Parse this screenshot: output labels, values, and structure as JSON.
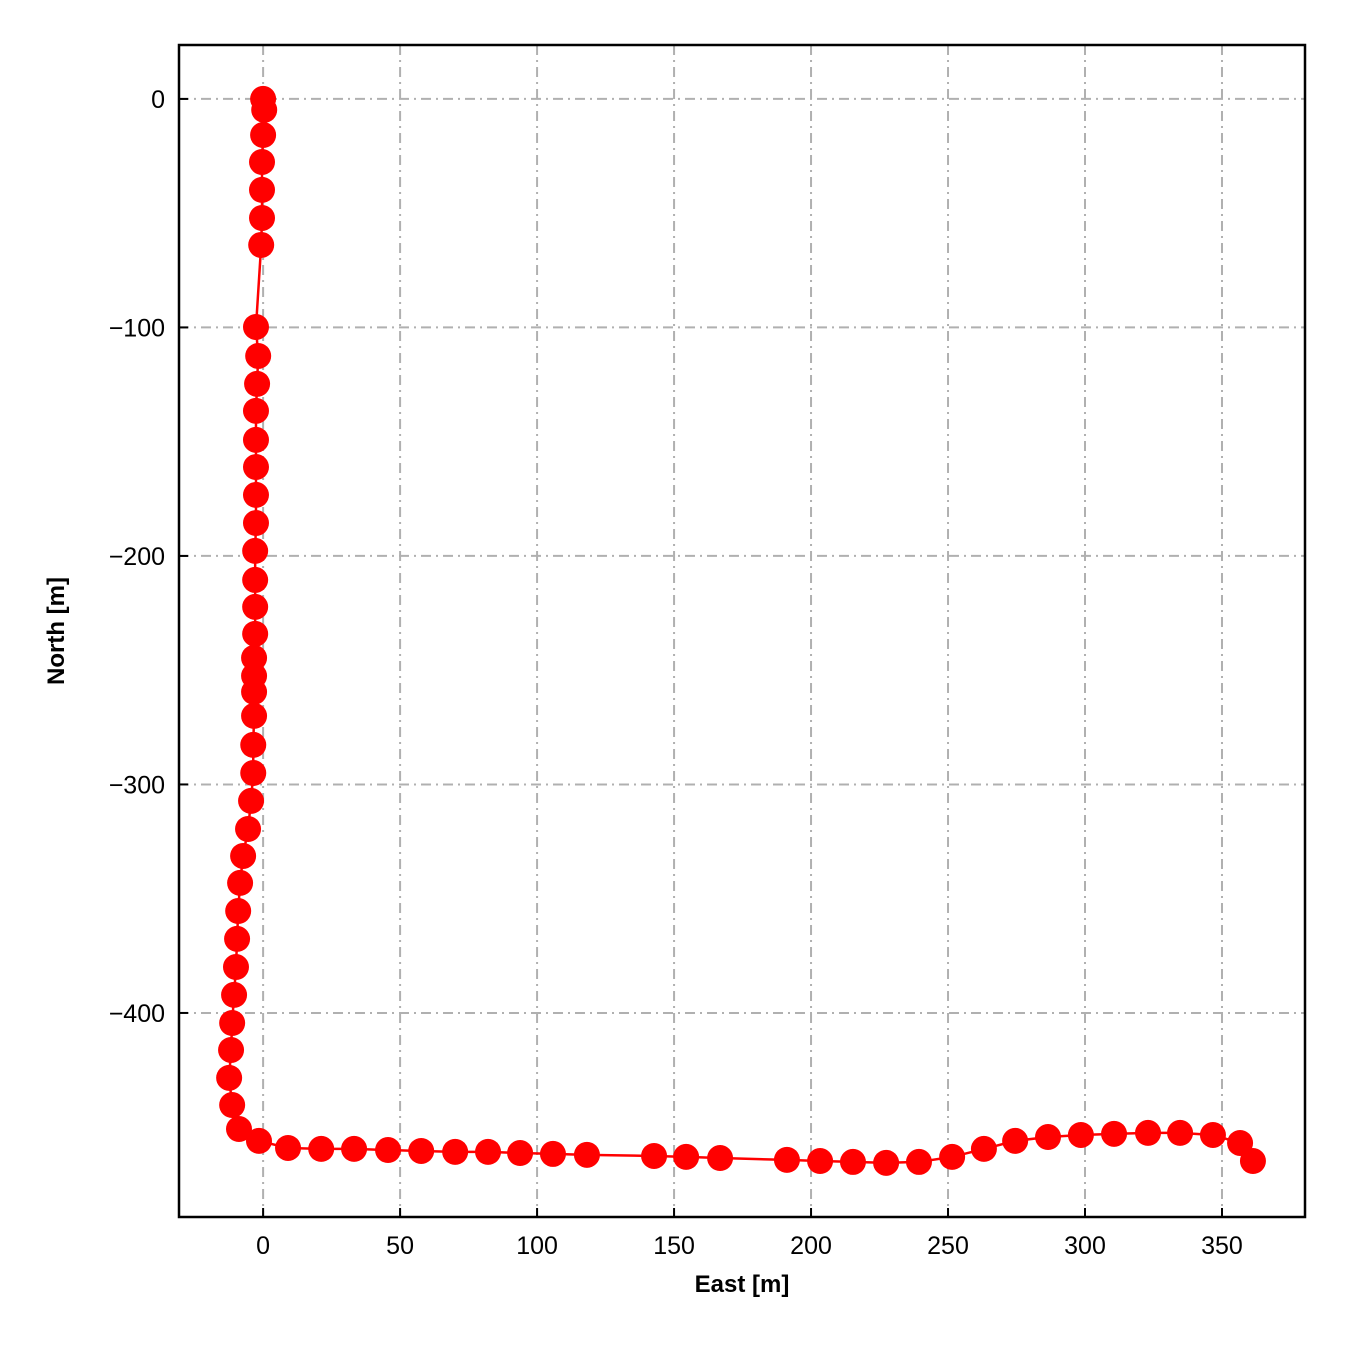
{
  "chart_data": {
    "type": "line",
    "xlabel": "East [m]",
    "ylabel": "North [m]",
    "x": [
      0,
      0.4,
      0,
      -0.4,
      -0.4,
      -0.4,
      -0.7,
      -2.6,
      -1.8,
      -2.2,
      -2.6,
      -2.6,
      -2.6,
      -2.6,
      -2.6,
      -2.9,
      -2.9,
      -2.9,
      -2.9,
      -3.3,
      -3.3,
      -3.3,
      -3.3,
      -3.6,
      -3.6,
      -4.4,
      -5.5,
      -7.3,
      -8.4,
      -9.1,
      -9.5,
      -9.9,
      -10.6,
      -11.3,
      -11.7,
      -12.4,
      -11.3,
      -8.8,
      -1.5,
      9.1,
      21.2,
      33.2,
      45.6,
      57.7,
      70.1,
      82.1,
      93.8,
      105.8,
      118.2,
      142.7,
      154.4,
      166.8,
      191.2,
      203.3,
      215.3,
      227.4,
      239.4,
      251.5,
      263.1,
      274.5,
      286.5,
      298.5,
      310.6,
      323.0,
      334.7,
      346.7,
      356.6,
      361.3
    ],
    "values": [
      0,
      -4.8,
      -15.8,
      -27.6,
      -39.8,
      -52.1,
      -63.9,
      -99.8,
      -112.5,
      -124.7,
      -136.5,
      -149.2,
      -161.1,
      -173.3,
      -185.6,
      -197.8,
      -210.5,
      -222.3,
      -234.1,
      -244.6,
      -252.5,
      -259.5,
      -270.0,
      -282.7,
      -295.0,
      -307.2,
      -319.5,
      -331.3,
      -343.1,
      -355.4,
      -367.6,
      -379.9,
      -392.1,
      -404.4,
      -416.2,
      -428.4,
      -440.3,
      -450.8,
      -456.0,
      -459.1,
      -459.5,
      -459.5,
      -460.0,
      -460.4,
      -460.8,
      -460.8,
      -461.3,
      -461.7,
      -462.1,
      -462.6,
      -463.0,
      -463.5,
      -464.3,
      -464.8,
      -465.2,
      -465.6,
      -465.2,
      -463.0,
      -459.5,
      -456.0,
      -454.3,
      -453.4,
      -452.9,
      -452.5,
      -452.5,
      -453.4,
      -456.9,
      -464.8
    ],
    "color": "#ff0000",
    "markers": true,
    "xlim": [
      -30.7,
      380.3
    ],
    "ylim": [
      -489.3,
      23.6
    ],
    "xticks": [
      0,
      50,
      100,
      150,
      200,
      250,
      300,
      350
    ],
    "yticks": [
      0,
      {
        "value": -100,
        "label": "−100"
      },
      {
        "value": -200,
        "label": "−200"
      },
      {
        "value": -300,
        "label": "−300"
      },
      {
        "value": -400,
        "label": "−400"
      }
    ],
    "grid": true
  }
}
